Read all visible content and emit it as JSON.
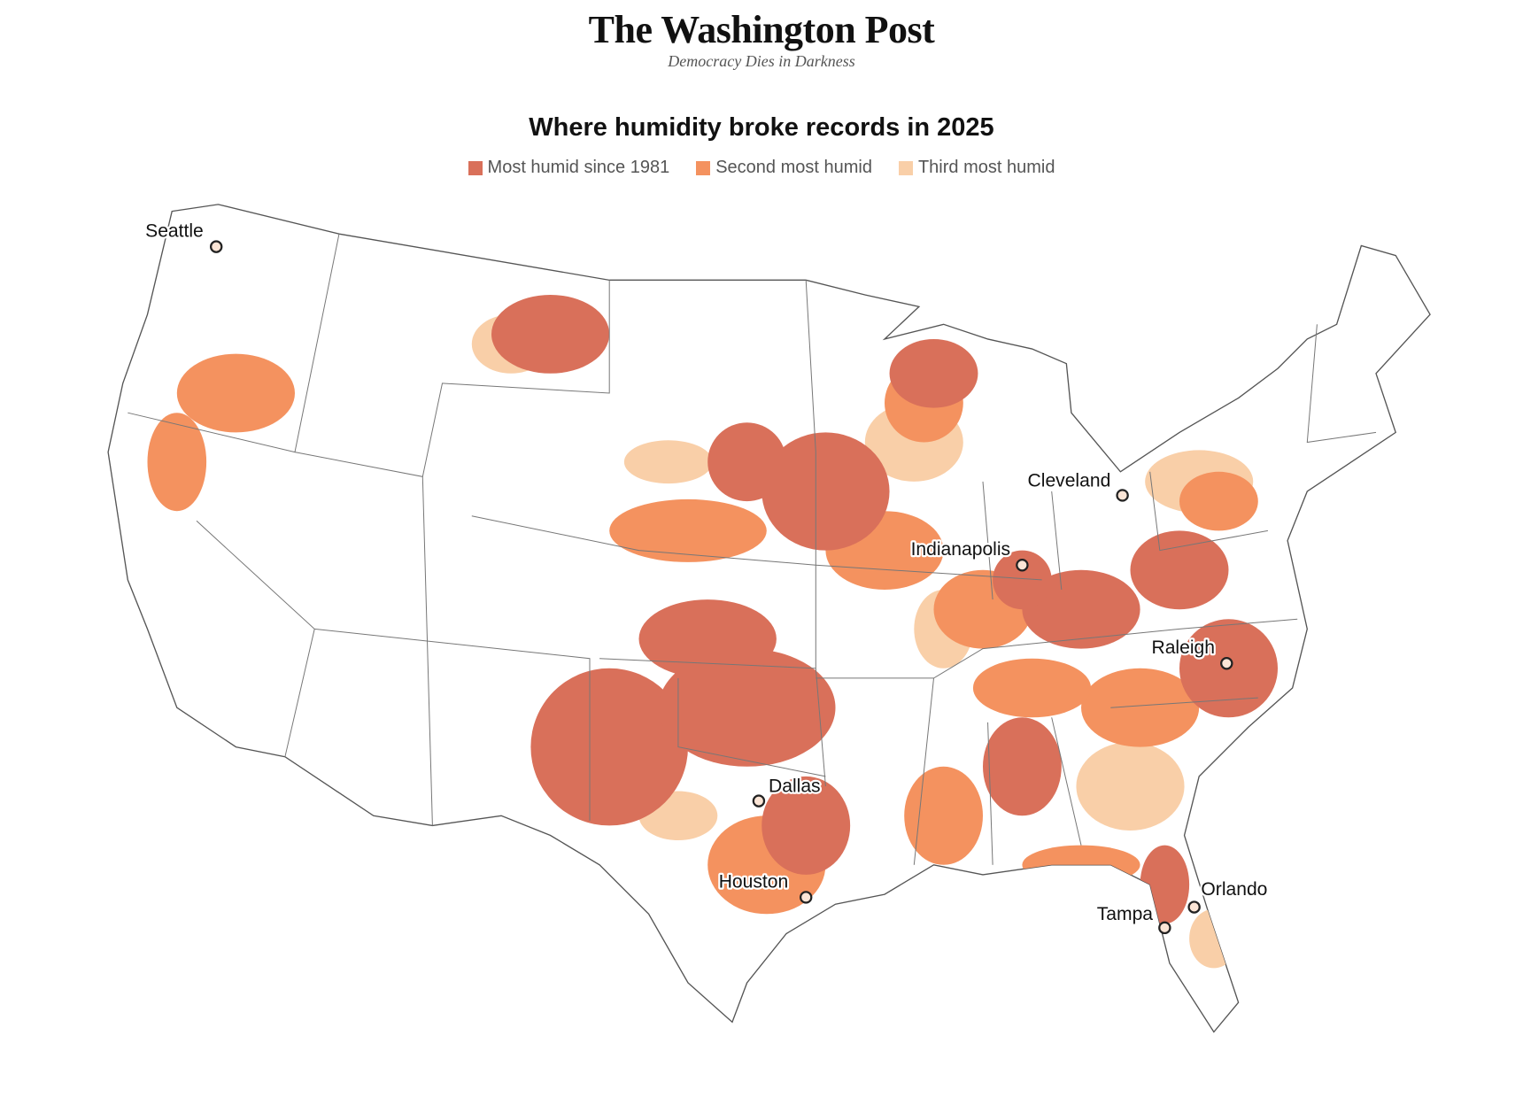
{
  "header": {
    "title": "The Washington Post",
    "tagline": "Democracy Dies in Darkness"
  },
  "chart": {
    "title": "Where humidity broke records in 2025",
    "legend": [
      {
        "label": "Most humid since 1981",
        "color": "#d9705a"
      },
      {
        "label": "Second most humid",
        "color": "#f4925f"
      },
      {
        "label": "Third most humid",
        "color": "#f9cfa8"
      }
    ],
    "cities": [
      "Seattle",
      "Cleveland",
      "Indianapolis",
      "Raleigh",
      "Dallas",
      "Houston",
      "Orlando",
      "Tampa"
    ]
  }
}
